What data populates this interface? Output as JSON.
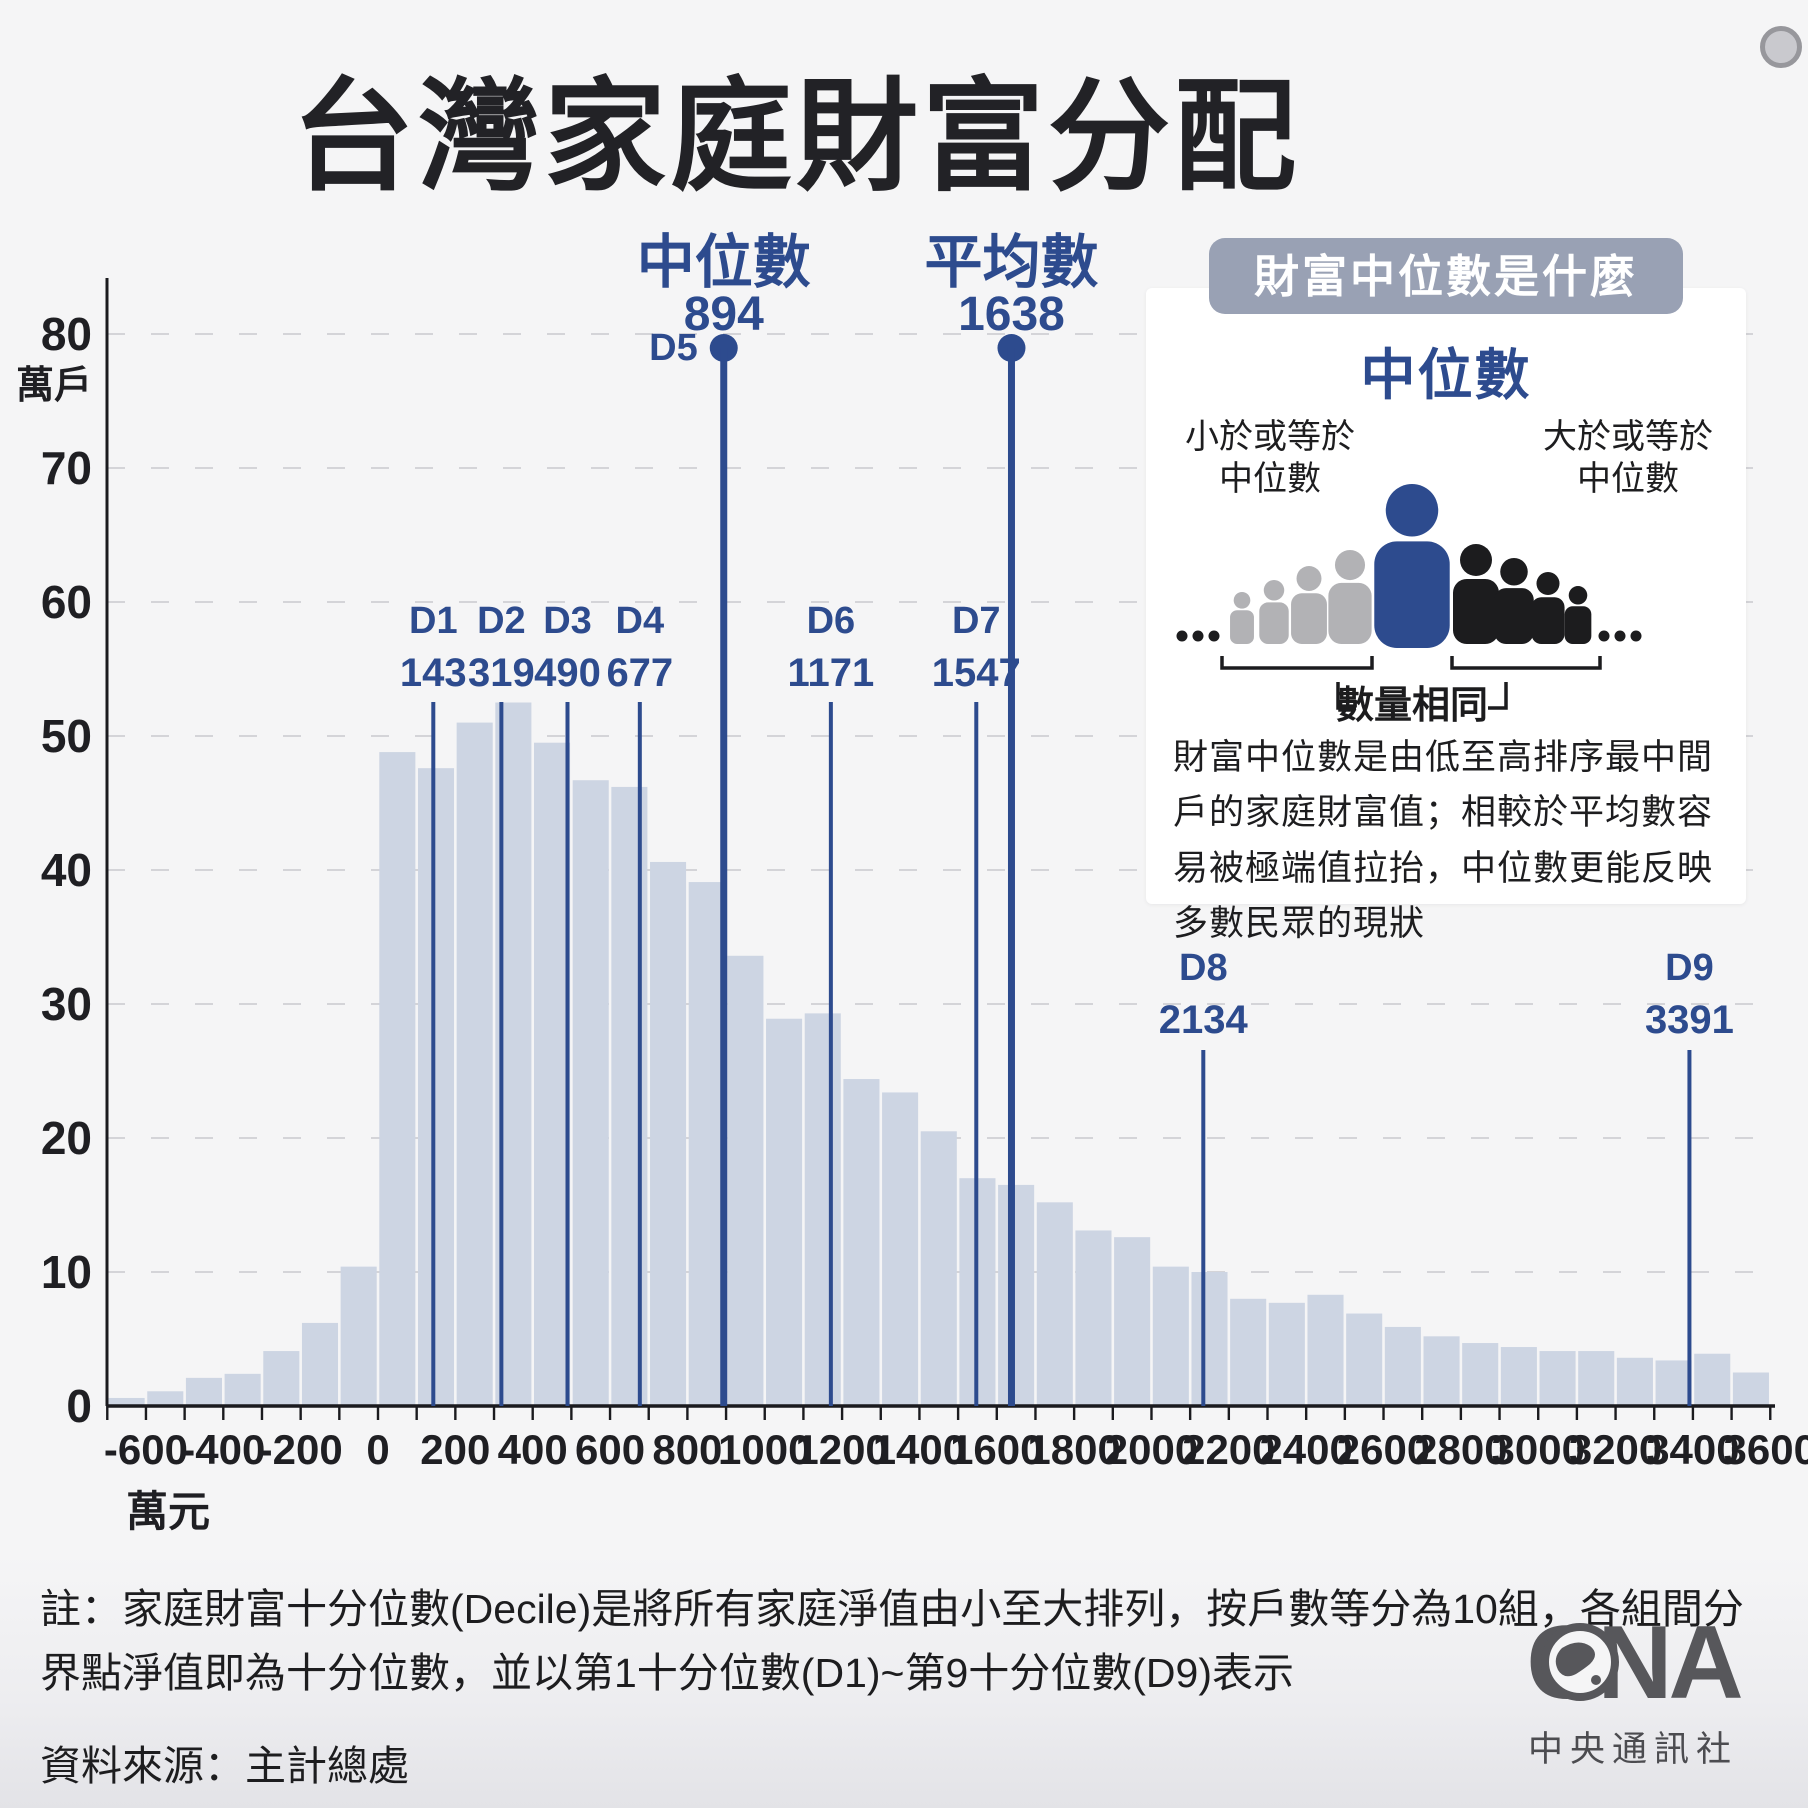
{
  "page": {
    "title": "台灣家庭財富分配"
  },
  "colors": {
    "accent_blue": "#2d4b8e",
    "bar_fill": "#cdd5e3",
    "grid": "#d4d4d8",
    "axis": "#1a1a1e",
    "text_dark": "#1d1d1f",
    "pill_bg": "#99a1b4",
    "person_gray": "#b2b2b5",
    "person_black": "#1c1c1e",
    "logo_gray": "#57575b"
  },
  "chart_data": {
    "type": "bar",
    "title": "台灣家庭財富分配",
    "x_axis_unit": "萬元",
    "y_axis_unit": "萬戶",
    "xlim": [
      -700,
      3600
    ],
    "ylim": [
      0,
      80
    ],
    "grid": "dashed-horizontal",
    "bin_width": 100,
    "bins": [
      [
        -700,
        0.6
      ],
      [
        -600,
        1.1
      ],
      [
        -500,
        2.1
      ],
      [
        -400,
        2.4
      ],
      [
        -300,
        4.1
      ],
      [
        -200,
        6.2
      ],
      [
        -100,
        10.4
      ],
      [
        0,
        48.8
      ],
      [
        100,
        47.6
      ],
      [
        200,
        51.0
      ],
      [
        300,
        52.5
      ],
      [
        400,
        49.5
      ],
      [
        500,
        46.7
      ],
      [
        600,
        46.2
      ],
      [
        700,
        40.6
      ],
      [
        800,
        39.1
      ],
      [
        900,
        33.6
      ],
      [
        1000,
        28.9
      ],
      [
        1100,
        29.3
      ],
      [
        1200,
        24.4
      ],
      [
        1300,
        23.4
      ],
      [
        1400,
        20.5
      ],
      [
        1500,
        17.0
      ],
      [
        1600,
        16.5
      ],
      [
        1700,
        15.2
      ],
      [
        1800,
        13.1
      ],
      [
        1900,
        12.6
      ],
      [
        2000,
        10.4
      ],
      [
        2100,
        10.0
      ],
      [
        2200,
        8.0
      ],
      [
        2300,
        7.7
      ],
      [
        2400,
        8.3
      ],
      [
        2500,
        6.9
      ],
      [
        2600,
        5.9
      ],
      [
        2700,
        5.2
      ],
      [
        2800,
        4.7
      ],
      [
        2900,
        4.4
      ],
      [
        3000,
        4.1
      ],
      [
        3100,
        4.1
      ],
      [
        3200,
        3.6
      ],
      [
        3300,
        3.4
      ],
      [
        3400,
        3.9
      ],
      [
        3500,
        2.5
      ]
    ],
    "x_ticks": [
      -600,
      -400,
      -200,
      0,
      200,
      400,
      600,
      800,
      1000,
      1200,
      1400,
      1600,
      1800,
      2000,
      2200,
      2400,
      2600,
      2800,
      3000,
      3200,
      3400,
      3600
    ],
    "y_ticks": [
      0,
      10,
      20,
      30,
      40,
      50,
      60,
      70,
      80
    ],
    "median": {
      "label": "中位數",
      "decile_label": "D5",
      "value": 894
    },
    "mean": {
      "label": "平均數",
      "value": 1638
    },
    "deciles": [
      {
        "label": "D1",
        "value": 143,
        "label_row": "high"
      },
      {
        "label": "D2",
        "value": 319,
        "label_row": "high"
      },
      {
        "label": "D3",
        "value": 490,
        "label_row": "high"
      },
      {
        "label": "D4",
        "value": 677,
        "label_row": "high"
      },
      {
        "label": "D6",
        "value": 1171,
        "label_row": "high"
      },
      {
        "label": "D7",
        "value": 1547,
        "label_row": "high"
      },
      {
        "label": "D8",
        "value": 2134,
        "label_row": "low"
      },
      {
        "label": "D9",
        "value": 3391,
        "label_row": "low"
      }
    ]
  },
  "infobox": {
    "header": "財富中位數是什麼",
    "median_title": "中位數",
    "left_label": [
      "小於或等於",
      "中位數"
    ],
    "right_label": [
      "大於或等於",
      "中位數"
    ],
    "bracket_label": "數量相同",
    "body": "財富中位數是由低至高排序最中間戶的家庭財富值；相較於平均數容易被極端值拉抬，中位數更能反映多數民眾的現狀"
  },
  "footer": {
    "note": "註：家庭財富十分位數(Decile)是將所有家庭淨值由小至大排列，按戶數等分為10組，各組間分界點淨值即為十分位數，並以第1十分位數(D1)~第9十分位數(D9)表示",
    "source": "資料來源：主計總處",
    "logo_text": "CNA",
    "logo_caption": "中央通訊社"
  }
}
